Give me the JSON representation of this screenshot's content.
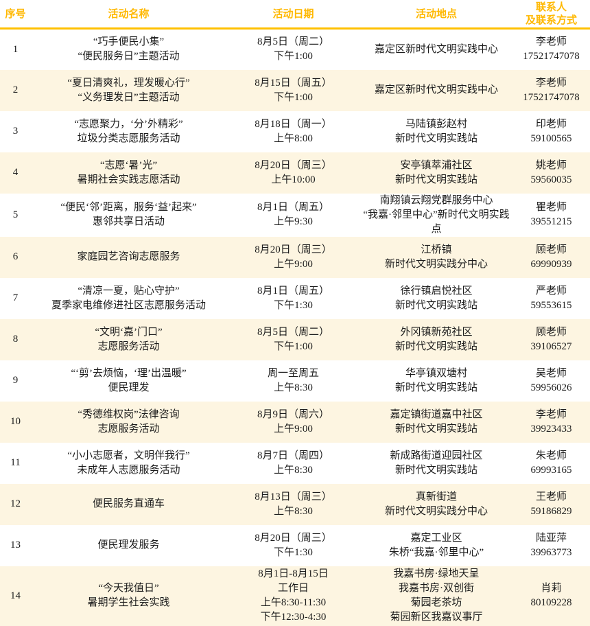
{
  "colors": {
    "header_text": "#FFB800",
    "header_rule": "#FFC000",
    "alt_row_bg": "#FDF5E1",
    "body_text": "#1C1C1C"
  },
  "table": {
    "headers": {
      "no": "序号",
      "name": "活动名称",
      "date": "活动日期",
      "location": "活动地点",
      "contact": "联系人\n及联系方式"
    },
    "rows": [
      {
        "no": "1",
        "name": "“巧手便民小集”\n“便民服务日”主题活动",
        "date": "8月5日（周二）\n下午1:00",
        "location": "嘉定区新时代文明实践中心",
        "contact": "李老师\n17521747078"
      },
      {
        "no": "2",
        "name": "“夏日清爽礼，理发暖心行”\n“义务理发日”主题活动",
        "date": "8月15日（周五）\n下午1:00",
        "location": "嘉定区新时代文明实践中心",
        "contact": "李老师\n17521747078"
      },
      {
        "no": "3",
        "name": "“志愿聚力，‘分’外精彩”\n垃圾分类志愿服务活动",
        "date": "8月18日（周一）\n上午8:00",
        "location": "马陆镇彭赵村\n新时代文明实践站",
        "contact": "印老师\n59100565"
      },
      {
        "no": "4",
        "name": "“志愿‘暑’光”\n暑期社会实践志愿活动",
        "date": "8月20日（周三）\n上午10:00",
        "location": "安亭镇萃浦社区\n新时代文明实践站",
        "contact": "姚老师\n59560035"
      },
      {
        "no": "5",
        "name": "“便民‘邻’距离，服务‘益’起来”\n惠邻共享日活动",
        "date": "8月1日（周五）\n上午9:30",
        "location": "南翔镇云翔党群服务中心\n“我嘉·邻里中心”新时代文明实践\n点",
        "contact": "瞿老师\n39551215"
      },
      {
        "no": "6",
        "name": "家庭园艺咨询志愿服务",
        "date": "8月20日（周三）\n上午9:00",
        "location": "江桥镇\n新时代文明实践分中心",
        "contact": "顾老师\n69990939"
      },
      {
        "no": "7",
        "name": "“清凉一夏，贴心守护”\n夏季家电维修进社区志愿服务活动",
        "date": "8月1日（周五）\n下午1:30",
        "location": "徐行镇启悦社区\n新时代文明实践站",
        "contact": "严老师\n59553615"
      },
      {
        "no": "8",
        "name": "“文明‘嘉’门口”\n志愿服务活动",
        "date": "8月5日（周二）\n下午1:00",
        "location": "外冈镇新苑社区\n新时代文明实践站",
        "contact": "顾老师\n39106527"
      },
      {
        "no": "9",
        "name": "“‘剪’去烦恼，‘理’出温暖”\n便民理发",
        "date": "周一至周五\n上午8:30",
        "location": "华亭镇双塘村\n新时代文明实践站",
        "contact": "吴老师\n59956026"
      },
      {
        "no": "10",
        "name": "“秀德维权岗”法律咨询\n志愿服务活动",
        "date": "8月9日（周六）\n上午9:00",
        "location": "嘉定镇街道嘉中社区\n新时代文明实践站",
        "contact": "李老师\n39923433"
      },
      {
        "no": "11",
        "name": "“小小志愿者，文明伴我行”\n未成年人志愿服务活动",
        "date": "8月7日（周四）\n上午8:30",
        "location": "新成路街道迎园社区\n新时代文明实践站",
        "contact": "朱老师\n69993165"
      },
      {
        "no": "12",
        "name": "便民服务直通车",
        "date": "8月13日（周三）\n上午8:30",
        "location": "真新街道\n新时代文明实践分中心",
        "contact": "王老师\n59186829"
      },
      {
        "no": "13",
        "name": "便民理发服务",
        "date": "8月20日（周三）\n下午1:30",
        "location": "嘉定工业区\n朱桥“我嘉·邻里中心”",
        "contact": "陆亚萍\n39963773"
      },
      {
        "no": "14",
        "name": "“今天我值日”\n暑期学生社会实践",
        "date": "8月1日-8月15日\n工作日\n上午8:30-11:30\n下午12:30-4:30",
        "location": "我嘉书房·绿地天呈\n我嘉书房·双创街\n菊园老茶坊\n菊园新区我嘉议事厅",
        "contact": "肖莉\n80109228"
      }
    ]
  }
}
